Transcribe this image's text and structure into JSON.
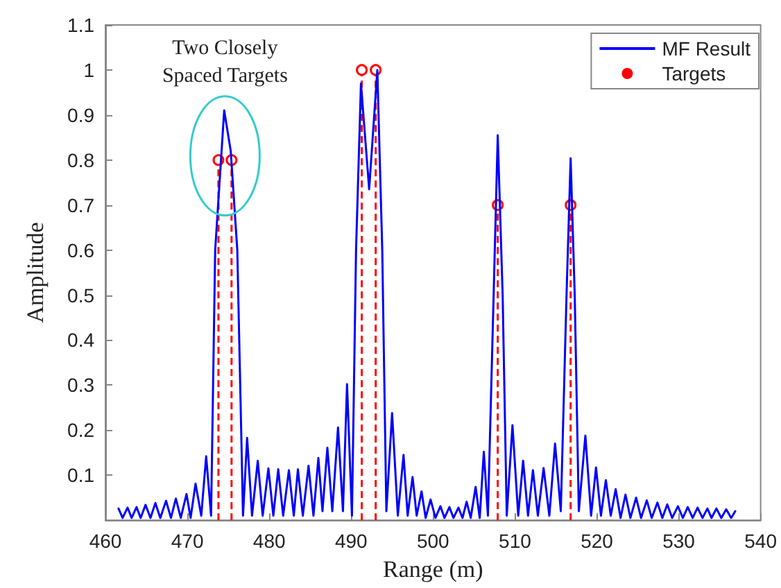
{
  "chart_data": {
    "type": "line",
    "xlabel": "Range (m)",
    "ylabel": "Amplitude",
    "xlim": [
      460,
      540
    ],
    "xticks": [
      460,
      470,
      480,
      490,
      500,
      510,
      520,
      530,
      540
    ],
    "ylim": [
      0,
      1.1
    ],
    "yticks": [
      {
        "value": 0,
        "label": null
      },
      0.1,
      0.2,
      0.3,
      0.4,
      0.5,
      0.6,
      0.7,
      0.8,
      0.9,
      1,
      1.1
    ],
    "grid": false,
    "legend": "top right",
    "annotations": [
      "Two Closely Spaced Targets"
    ],
    "series": [
      {
        "name": "MF Result",
        "color": "#0000ff",
        "marker": "none",
        "line_style": "solid",
        "x": [
          461.6,
          462.1,
          462.7,
          463.2,
          463.8,
          464.3,
          464.9,
          465.5,
          466.1,
          466.7,
          467.4,
          468.0,
          468.6,
          469.2,
          469.9,
          470.4,
          471.0,
          471.7,
          472.3,
          472.9,
          473.4,
          474.5,
          475.3,
          476.1,
          476.8,
          477.3,
          477.9,
          478.6,
          479.2,
          479.9,
          480.5,
          481.1,
          481.7,
          482.4,
          483.0,
          483.5,
          484.1,
          484.8,
          485.4,
          486.0,
          486.5,
          487.1,
          487.7,
          488.4,
          489.0,
          489.5,
          490.1,
          490.6,
          491.2,
          492.2,
          493.2,
          493.8,
          494.3,
          495.0,
          495.7,
          496.4,
          496.9,
          497.5,
          498.0,
          498.6,
          499.1,
          499.7,
          500.3,
          500.9,
          501.4,
          502.0,
          502.5,
          503.1,
          503.6,
          504.1,
          504.6,
          505.2,
          505.7,
          506.2,
          506.7,
          507.4,
          507.9,
          508.5,
          509.0,
          509.7,
          510.4,
          511.0,
          511.6,
          512.2,
          512.8,
          513.5,
          514.2,
          514.9,
          515.6,
          516.3,
          516.8,
          517.3,
          517.8,
          518.6,
          519.3,
          519.9,
          520.5,
          521.1,
          521.7,
          522.3,
          522.9,
          523.5,
          524.1,
          524.8,
          525.4,
          526.1,
          526.7,
          527.4,
          528.0,
          528.6,
          529.2,
          529.9,
          530.5,
          531.1,
          531.7,
          532.3,
          532.9,
          533.5,
          534.0,
          534.6,
          535.2,
          535.8,
          536.4,
          536.9
        ],
        "values": [
          0.026,
          0.005,
          0.028,
          0.005,
          0.029,
          0.005,
          0.034,
          0.005,
          0.038,
          0.005,
          0.043,
          0.005,
          0.048,
          0.005,
          0.058,
          0.005,
          0.081,
          0.01,
          0.142,
          0.01,
          0.6,
          0.91,
          0.82,
          0.6,
          0.01,
          0.183,
          0.01,
          0.132,
          0.01,
          0.115,
          0.01,
          0.113,
          0.01,
          0.111,
          0.01,
          0.113,
          0.01,
          0.121,
          0.01,
          0.138,
          0.02,
          0.161,
          0.02,
          0.206,
          0.02,
          0.302,
          0.01,
          0.6,
          0.97,
          0.735,
          1.0,
          0.6,
          0.02,
          0.238,
          0.01,
          0.145,
          0.01,
          0.096,
          0.01,
          0.064,
          0.005,
          0.046,
          0.005,
          0.031,
          0.005,
          0.029,
          0.005,
          0.028,
          0.005,
          0.041,
          0.005,
          0.074,
          0.005,
          0.152,
          0.01,
          0.5,
          0.855,
          0.5,
          0.01,
          0.211,
          0.01,
          0.132,
          0.01,
          0.111,
          0.01,
          0.116,
          0.01,
          0.17,
          0.02,
          0.5,
          0.804,
          0.5,
          0.02,
          0.188,
          0.01,
          0.117,
          0.01,
          0.089,
          0.01,
          0.069,
          0.005,
          0.057,
          0.005,
          0.05,
          0.005,
          0.044,
          0.005,
          0.039,
          0.005,
          0.035,
          0.005,
          0.031,
          0.005,
          0.029,
          0.005,
          0.028,
          0.005,
          0.026,
          0.005,
          0.026,
          0.005,
          0.024,
          0.005,
          0.02
        ]
      },
      {
        "name": "Targets",
        "type": "lollipop",
        "color": "#ff0000",
        "marker": "circle",
        "line_style": "dashed",
        "x": [
          473.8,
          475.4,
          491.3,
          493.0,
          507.9,
          516.8
        ],
        "values": [
          0.8,
          0.8,
          1,
          1,
          0.7,
          0.7
        ]
      }
    ]
  }
}
